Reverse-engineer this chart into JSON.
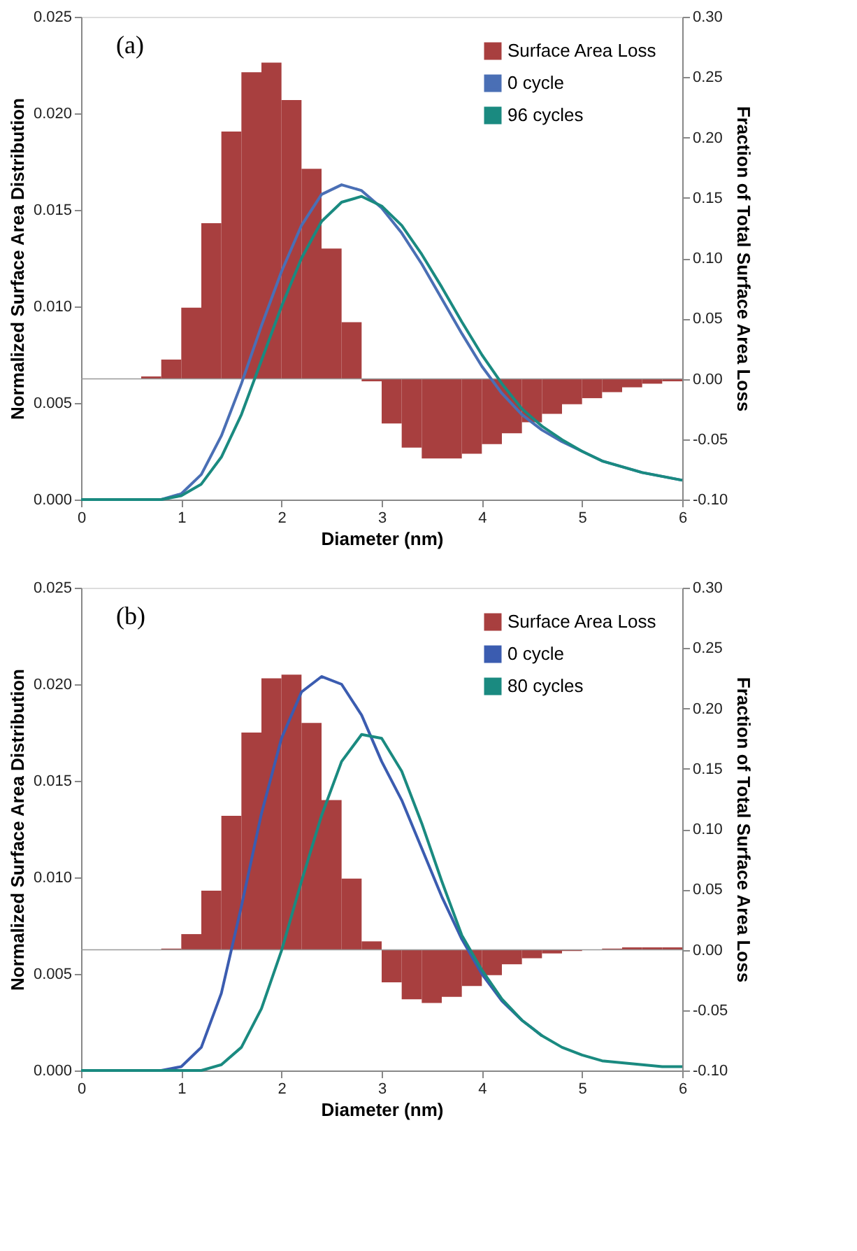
{
  "chart_data": [
    {
      "type": "line",
      "xlabel": "Diameter (nm)",
      "ylabel": "Normalized Surface Area Distribution",
      "y2label": "Fraction of Total Surface Area Loss",
      "annotations": [
        "(a)"
      ],
      "legend": "top right",
      "grid": false,
      "ref_lines": [
        {
          "axis": "y2",
          "value": 0,
          "color": "#999999"
        }
      ],
      "xlim": [
        0,
        6
      ],
      "xticks": [
        0,
        1,
        2,
        3,
        4,
        5,
        6
      ],
      "ylim": [
        0,
        0.025
      ],
      "yticks": [
        {
          "value": 0,
          "label": "0.000"
        },
        {
          "value": 0.005,
          "label": "0.005"
        },
        {
          "value": 0.01,
          "label": "0.010"
        },
        {
          "value": 0.015,
          "label": "0.015"
        },
        {
          "value": 0.02,
          "label": "0.020"
        },
        {
          "value": 0.025,
          "label": "0.025"
        }
      ],
      "y2lim": [
        -0.1,
        0.3
      ],
      "y2ticks": [
        {
          "value": -0.1,
          "label": "-0.10"
        },
        {
          "value": -0.05,
          "label": "-0.05"
        },
        {
          "value": 0,
          "label": "0.00"
        },
        {
          "value": 0.05,
          "label": "0.05"
        },
        {
          "value": 0.1,
          "label": "0.10"
        },
        {
          "value": 0.15,
          "label": "0.15"
        },
        {
          "value": 0.2,
          "label": "0.20"
        },
        {
          "value": 0.25,
          "label": "0.25"
        },
        {
          "value": 0.3,
          "label": "0.30"
        }
      ],
      "series": [
        {
          "name": "Surface Area Loss",
          "type": "histogram",
          "axis": "y2",
          "color": "#a83f3f",
          "bins": [
            0.6,
            0.8,
            1.0,
            1.2,
            1.4,
            1.6,
            1.8,
            2.0,
            2.2,
            2.4,
            2.6,
            2.8,
            3.0,
            3.2,
            3.4,
            3.6,
            3.8,
            4.0,
            4.2,
            4.4,
            4.6,
            4.8,
            5.0,
            5.2,
            5.4,
            5.6,
            5.8,
            6.0
          ],
          "values": [
            0.002,
            0.016,
            0.059,
            0.129,
            0.205,
            0.254,
            0.262,
            0.231,
            0.174,
            0.108,
            0.047,
            -0.002,
            -0.037,
            -0.057,
            -0.066,
            -0.066,
            -0.062,
            -0.054,
            -0.045,
            -0.036,
            -0.029,
            -0.021,
            -0.016,
            -0.011,
            -0.007,
            -0.004,
            -0.002
          ]
        },
        {
          "name": "0 cycle",
          "color": "#4a6fb5",
          "x": [
            0,
            0.8,
            1.0,
            1.2,
            1.4,
            1.6,
            1.8,
            2.0,
            2.2,
            2.4,
            2.6,
            2.8,
            3.0,
            3.2,
            3.4,
            3.6,
            3.8,
            4.0,
            4.2,
            4.4,
            4.6,
            4.8,
            5.0,
            5.2,
            5.4,
            5.6,
            5.8,
            6.0
          ],
          "values": [
            0,
            0,
            0.0003,
            0.0013,
            0.0033,
            0.006,
            0.009,
            0.0118,
            0.0142,
            0.0158,
            0.0163,
            0.016,
            0.0151,
            0.0138,
            0.0122,
            0.0104,
            0.0086,
            0.0069,
            0.0055,
            0.0044,
            0.0036,
            0.003,
            0.0025,
            0.002,
            0.0017,
            0.0014,
            0.0012,
            0.001
          ]
        },
        {
          "name": "96 cycles",
          "color": "#1a8a80",
          "x": [
            0,
            0.8,
            1.0,
            1.2,
            1.4,
            1.6,
            1.8,
            2.0,
            2.2,
            2.4,
            2.6,
            2.8,
            3.0,
            3.2,
            3.4,
            3.6,
            3.8,
            4.0,
            4.2,
            4.4,
            4.6,
            4.8,
            5.0,
            5.2,
            5.4,
            5.6,
            5.8,
            6.0
          ],
          "values": [
            0,
            0,
            0.0002,
            0.0008,
            0.0022,
            0.0044,
            0.0072,
            0.01,
            0.0125,
            0.0144,
            0.0154,
            0.0157,
            0.0152,
            0.0142,
            0.0127,
            0.011,
            0.0092,
            0.0075,
            0.006,
            0.0047,
            0.0038,
            0.0031,
            0.0025,
            0.002,
            0.0017,
            0.0014,
            0.0012,
            0.001
          ]
        }
      ]
    },
    {
      "type": "line",
      "xlabel": "Diameter (nm)",
      "ylabel": "Normalized Surface Area Distribution",
      "y2label": "Fraction of Total Surface Area Loss",
      "annotations": [
        "(b)"
      ],
      "legend": "top right",
      "grid": false,
      "ref_lines": [
        {
          "axis": "y2",
          "value": 0,
          "color": "#999999"
        }
      ],
      "xlim": [
        0,
        6
      ],
      "xticks": [
        0,
        1,
        2,
        3,
        4,
        5,
        6
      ],
      "ylim": [
        0,
        0.025
      ],
      "yticks": [
        {
          "value": 0,
          "label": "0.000"
        },
        {
          "value": 0.005,
          "label": "0.005"
        },
        {
          "value": 0.01,
          "label": "0.010"
        },
        {
          "value": 0.015,
          "label": "0.015"
        },
        {
          "value": 0.02,
          "label": "0.020"
        },
        {
          "value": 0.025,
          "label": "0.025"
        }
      ],
      "y2lim": [
        -0.1,
        0.3
      ],
      "y2ticks": [
        {
          "value": -0.1,
          "label": "-0.10"
        },
        {
          "value": -0.05,
          "label": "-0.05"
        },
        {
          "value": 0,
          "label": "0.00"
        },
        {
          "value": 0.05,
          "label": "0.05"
        },
        {
          "value": 0.1,
          "label": "0.10"
        },
        {
          "value": 0.15,
          "label": "0.15"
        },
        {
          "value": 0.2,
          "label": "0.20"
        },
        {
          "value": 0.25,
          "label": "0.25"
        },
        {
          "value": 0.3,
          "label": "0.30"
        }
      ],
      "series": [
        {
          "name": "Surface Area Loss",
          "type": "histogram",
          "axis": "y2",
          "color": "#a83f3f",
          "bins": [
            0.8,
            1.0,
            1.2,
            1.4,
            1.6,
            1.8,
            2.0,
            2.2,
            2.4,
            2.6,
            2.8,
            3.0,
            3.2,
            3.4,
            3.6,
            3.8,
            4.0,
            4.2,
            4.4,
            4.6,
            4.8,
            5.0,
            5.2,
            5.4,
            5.6,
            5.8,
            6.0
          ],
          "values": [
            0.001,
            0.013,
            0.049,
            0.111,
            0.18,
            0.225,
            0.228,
            0.188,
            0.124,
            0.059,
            0.007,
            -0.027,
            -0.041,
            -0.044,
            -0.039,
            -0.03,
            -0.021,
            -0.012,
            -0.007,
            -0.003,
            -0.001,
            0.0,
            0.001,
            0.002,
            0.002,
            0.002
          ]
        },
        {
          "name": "0 cycle",
          "color": "#3b5cb0",
          "x": [
            0,
            0.8,
            1.0,
            1.2,
            1.4,
            1.6,
            1.8,
            2.0,
            2.2,
            2.4,
            2.6,
            2.8,
            3.0,
            3.2,
            3.4,
            3.6,
            3.8,
            4.0,
            4.2,
            4.4,
            4.6
          ],
          "values": [
            0,
            0,
            0.0002,
            0.0012,
            0.004,
            0.0085,
            0.0133,
            0.0172,
            0.0196,
            0.0204,
            0.02,
            0.0184,
            0.016,
            0.014,
            0.0115,
            0.009,
            0.0068,
            0.005,
            0.0036,
            0.0026,
            0.0018
          ]
        },
        {
          "name": "80 cycles",
          "color": "#1a8a80",
          "x": [
            0,
            1.2,
            1.4,
            1.6,
            1.8,
            2.0,
            2.2,
            2.4,
            2.6,
            2.8,
            3.0,
            3.2,
            3.4,
            3.6,
            3.8,
            4.0,
            4.2,
            4.4,
            4.6,
            4.8,
            5.0,
            5.2,
            5.4,
            5.6,
            5.8,
            6.0
          ],
          "values": [
            0,
            0,
            0.0003,
            0.0012,
            0.0032,
            0.0062,
            0.0098,
            0.0132,
            0.016,
            0.0174,
            0.0172,
            0.0155,
            0.0128,
            0.0098,
            0.007,
            0.0052,
            0.0037,
            0.0026,
            0.0018,
            0.0012,
            0.0008,
            0.0005,
            0.0004,
            0.0003,
            0.0002,
            0.0002
          ]
        }
      ]
    }
  ]
}
